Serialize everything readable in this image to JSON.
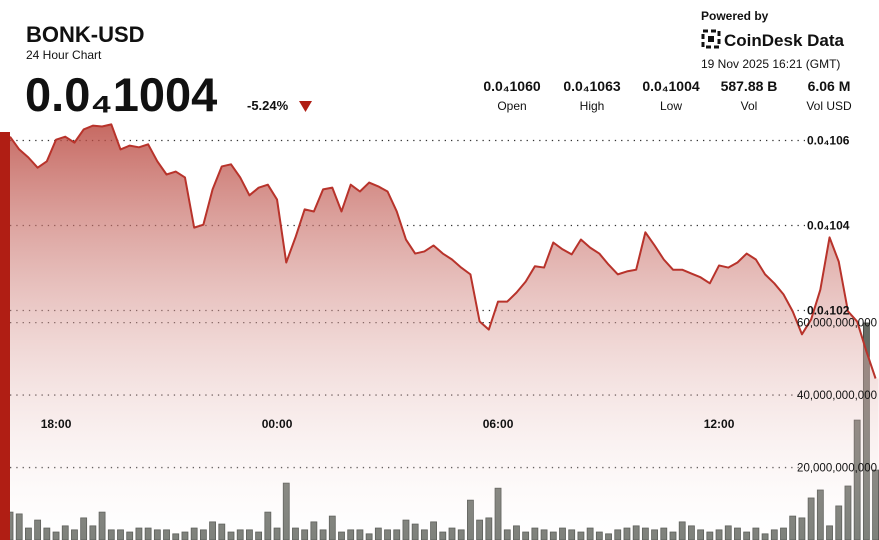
{
  "header": {
    "title": "BONK-USD",
    "subtitle": "24 Hour Chart",
    "price": "0.0₄1004",
    "change": "-5.24%",
    "powered_by": "Powered by",
    "brand": "CoinDesk Data",
    "timestamp": "19 Nov 2025 16:21 (GMT)",
    "stats": [
      {
        "value": "0.0₄1060",
        "label": "Open"
      },
      {
        "value": "0.0₄1063",
        "label": "High"
      },
      {
        "value": "0.0₄1004",
        "label": "Low"
      },
      {
        "value": "587.88 B",
        "label": "Vol"
      },
      {
        "value": "6.06 M",
        "label": "Vol USD"
      }
    ]
  },
  "chart_data": {
    "type": "line",
    "x": [
      "16:45",
      "17:00",
      "17:15",
      "17:30",
      "17:45",
      "18:00",
      "18:15",
      "18:30",
      "18:45",
      "19:00",
      "19:15",
      "19:30",
      "19:45",
      "20:00",
      "20:15",
      "20:30",
      "20:45",
      "21:00",
      "21:15",
      "21:30",
      "21:45",
      "22:00",
      "22:15",
      "22:30",
      "22:45",
      "23:00",
      "23:15",
      "23:30",
      "23:45",
      "00:00",
      "00:15",
      "00:30",
      "00:45",
      "01:00",
      "01:15",
      "01:30",
      "01:45",
      "02:00",
      "02:15",
      "02:30",
      "02:45",
      "03:00",
      "03:15",
      "03:30",
      "03:45",
      "04:00",
      "04:15",
      "04:30",
      "04:45",
      "05:00",
      "05:15",
      "05:30",
      "05:45",
      "06:00",
      "06:15",
      "06:30",
      "06:45",
      "07:00",
      "07:15",
      "07:30",
      "07:45",
      "08:00",
      "08:15",
      "08:30",
      "08:45",
      "09:00",
      "09:15",
      "09:30",
      "09:45",
      "10:00",
      "10:15",
      "10:30",
      "10:45",
      "11:00",
      "11:15",
      "11:30",
      "11:45",
      "12:00",
      "12:15",
      "12:30",
      "12:45",
      "13:00",
      "13:15",
      "13:30",
      "13:45",
      "14:00",
      "14:15",
      "14:30",
      "14:45",
      "15:00",
      "15:15",
      "15:30",
      "15:45",
      "16:00",
      "16:15"
    ],
    "xticks": [
      "18:00",
      "00:00",
      "06:00",
      "12:00"
    ],
    "series": [
      {
        "name": "Price",
        "type": "line",
        "color": "#b8332b",
        "values": [
          1.0609e-05,
          1.0579e-05,
          1.056e-05,
          1.0536e-05,
          1.0551e-05,
          1.0602e-05,
          1.0609e-05,
          1.0595e-05,
          1.0626e-05,
          1.0635e-05,
          1.0633e-05,
          1.0638e-05,
          1.0579e-05,
          1.0588e-05,
          1.0584e-05,
          1.0591e-05,
          1.0551e-05,
          1.052e-05,
          1.0527e-05,
          1.0513e-05,
          1.0395e-05,
          1.0402e-05,
          1.0485e-05,
          1.0539e-05,
          1.0544e-05,
          1.0513e-05,
          1.0471e-05,
          1.0489e-05,
          1.0496e-05,
          1.0461e-05,
          1.0313e-05,
          1.0372e-05,
          1.0438e-05,
          1.0433e-05,
          1.0485e-05,
          1.0489e-05,
          1.0433e-05,
          1.0496e-05,
          1.048e-05,
          1.0501e-05,
          1.0492e-05,
          1.048e-05,
          1.0433e-05,
          1.0367e-05,
          1.0334e-05,
          1.0339e-05,
          1.0353e-05,
          1.0334e-05,
          1.032e-05,
          1.0301e-05,
          1.0285e-05,
          1.0174e-05,
          1.0155e-05,
          1.0221e-05,
          1.0221e-05,
          1.0242e-05,
          1.0268e-05,
          1.0304e-05,
          1.0301e-05,
          1.036e-05,
          1.0344e-05,
          1.0332e-05,
          1.0367e-05,
          1.0348e-05,
          1.0334e-05,
          1.0308e-05,
          1.0285e-05,
          1.0292e-05,
          1.0296e-05,
          1.0384e-05,
          1.0353e-05,
          1.032e-05,
          1.0296e-05,
          1.0296e-05,
          1.0287e-05,
          1.0278e-05,
          1.0264e-05,
          1.0306e-05,
          1.0301e-05,
          1.0313e-05,
          1.0334e-05,
          1.032e-05,
          1.0285e-05,
          1.0264e-05,
          1.0238e-05,
          1.0198e-05,
          1.0144e-05,
          1.0179e-05,
          1.0249e-05,
          1.0372e-05,
          1.0315e-05,
          1.0198e-05,
          1.0174e-05,
          1.0104e-05,
          1.004e-05
        ]
      },
      {
        "name": "Volume",
        "type": "bar",
        "axis": "y2",
        "color": "#676b64",
        "values": [
          7700000000,
          7200000000,
          3300000000,
          5500000000,
          3300000000,
          2200000000,
          3900000000,
          2800000000,
          6100000000,
          3900000000,
          7700000000,
          2800000000,
          2800000000,
          2200000000,
          3300000000,
          3300000000,
          2800000000,
          2800000000,
          1700000000,
          2200000000,
          3300000000,
          2800000000,
          5000000000,
          4400000000,
          2200000000,
          2800000000,
          2800000000,
          2200000000,
          7700000000,
          3300000000,
          15700000000,
          3300000000,
          2800000000,
          5000000000,
          2800000000,
          6600000000,
          2200000000,
          2800000000,
          2800000000,
          1700000000,
          3300000000,
          2800000000,
          2800000000,
          5500000000,
          4400000000,
          2800000000,
          5000000000,
          2200000000,
          3300000000,
          2800000000,
          11000000000,
          5500000000,
          6100000000,
          14300000000,
          2800000000,
          3900000000,
          2200000000,
          3300000000,
          2800000000,
          2200000000,
          3300000000,
          2800000000,
          2200000000,
          3300000000,
          2200000000,
          1700000000,
          2800000000,
          3300000000,
          3900000000,
          3300000000,
          2800000000,
          3300000000,
          2200000000,
          5000000000,
          3900000000,
          2800000000,
          2200000000,
          2800000000,
          3900000000,
          3300000000,
          2200000000,
          3300000000,
          1700000000,
          2800000000,
          3300000000,
          6600000000,
          6100000000,
          11600000000,
          13800000000,
          3900000000,
          9400000000,
          14900000000,
          33100000000,
          59900000000,
          19300000000
        ]
      }
    ],
    "ylim": [
      9.66e-06,
      1.07e-05
    ],
    "yticks": [
      {
        "value": 1.06e-05,
        "label": "0.0₄106"
      },
      {
        "value": 1.04e-05,
        "label": "0.0₄104"
      },
      {
        "value": 1.02e-05,
        "label": "0.0₄102"
      }
    ],
    "y2lim": [
      0,
      122000000000
    ],
    "y2ticks": [
      {
        "value": 60000000000,
        "label": "60,000,000,000"
      },
      {
        "value": 40000000000,
        "label": "40,000,000,000"
      },
      {
        "value": 20000000000,
        "label": "20,000,000,000"
      }
    ],
    "grid": true
  }
}
